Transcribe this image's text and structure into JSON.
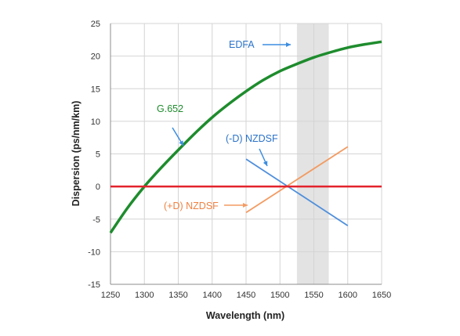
{
  "chart_data": {
    "type": "line",
    "title": "",
    "xlabel": "Wavelength (nm)",
    "ylabel": "Dispersion (ps/nm/km)",
    "xlim": [
      1250,
      1650
    ],
    "ylim": [
      -15,
      25
    ],
    "xticks": [
      1250,
      1300,
      1350,
      1400,
      1450,
      1500,
      1550,
      1600,
      1650
    ],
    "yticks": [
      -15,
      -10,
      -5,
      0,
      5,
      10,
      15,
      20,
      25
    ],
    "grid": true,
    "highlight_band": {
      "x": [
        1525,
        1572
      ],
      "label": "EDFA",
      "color": "#e3e3e3"
    },
    "series": [
      {
        "name": "G.652",
        "color": "#1e8c2d",
        "x": [
          1250,
          1275,
          1300,
          1325,
          1350,
          1375,
          1400,
          1425,
          1450,
          1475,
          1500,
          1525,
          1550,
          1575,
          1600,
          1625,
          1650
        ],
        "y": [
          -7.1,
          -3.3,
          0.0,
          2.9,
          5.6,
          8.2,
          10.6,
          12.7,
          14.6,
          16.3,
          17.7,
          18.8,
          19.8,
          20.6,
          21.3,
          21.8,
          22.2
        ]
      },
      {
        "name": "(-D) NZDSF",
        "color": "#4f8fdc",
        "x": [
          1450,
          1600
        ],
        "y": [
          4.2,
          -6.0
        ]
      },
      {
        "name": "(+D) NZDSF",
        "color": "#f39b62",
        "x": [
          1450,
          1600
        ],
        "y": [
          -4.0,
          6.1
        ]
      },
      {
        "name": "zero",
        "color": "#e3232c",
        "x": [
          1250,
          1650
        ],
        "y": [
          0,
          0
        ]
      }
    ],
    "annotations": [
      {
        "text": "EDFA",
        "color": "#2a72c8"
      },
      {
        "text": "G.652",
        "color": "#1e8c2d"
      },
      {
        "text": "(-D) NZDSF",
        "color": "#2a72c8"
      },
      {
        "text": "(+D) NZDSF",
        "color": "#ee8243"
      }
    ]
  }
}
